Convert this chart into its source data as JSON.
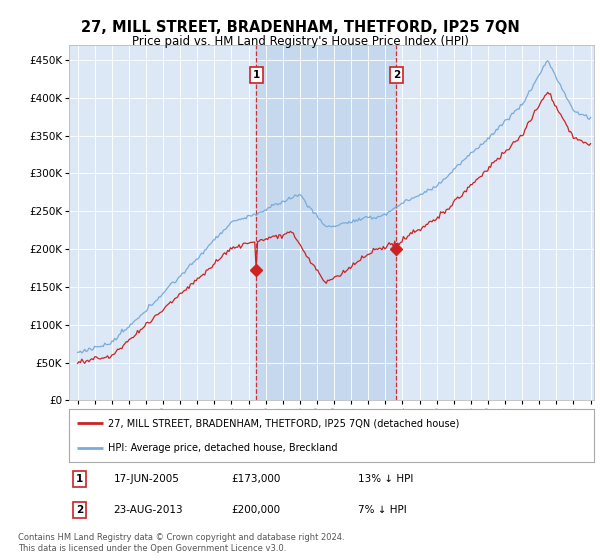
{
  "title": "27, MILL STREET, BRADENHAM, THETFORD, IP25 7QN",
  "subtitle": "Price paid vs. HM Land Registry's House Price Index (HPI)",
  "sale1_date": "17-JUN-2005",
  "sale1_price": 173000,
  "sale1_label": "13% ↓ HPI",
  "sale2_date": "23-AUG-2013",
  "sale2_price": 200000,
  "sale2_label": "7% ↓ HPI",
  "legend_line1": "27, MILL STREET, BRADENHAM, THETFORD, IP25 7QN (detached house)",
  "legend_line2": "HPI: Average price, detached house, Breckland",
  "footer": "Contains HM Land Registry data © Crown copyright and database right 2024.\nThis data is licensed under the Open Government Licence v3.0.",
  "hpi_color": "#7aabda",
  "price_color": "#cc2222",
  "background_color": "#ffffff",
  "plot_bg_color": "#dce8f5",
  "shade_color": "#c5d8ee",
  "ylim": [
    0,
    470000
  ],
  "yticks": [
    0,
    50000,
    100000,
    150000,
    200000,
    250000,
    300000,
    350000,
    400000,
    450000
  ],
  "sale1_x": 2005.46,
  "sale2_x": 2013.64,
  "xmin": 1995.0,
  "xmax": 2025.0
}
